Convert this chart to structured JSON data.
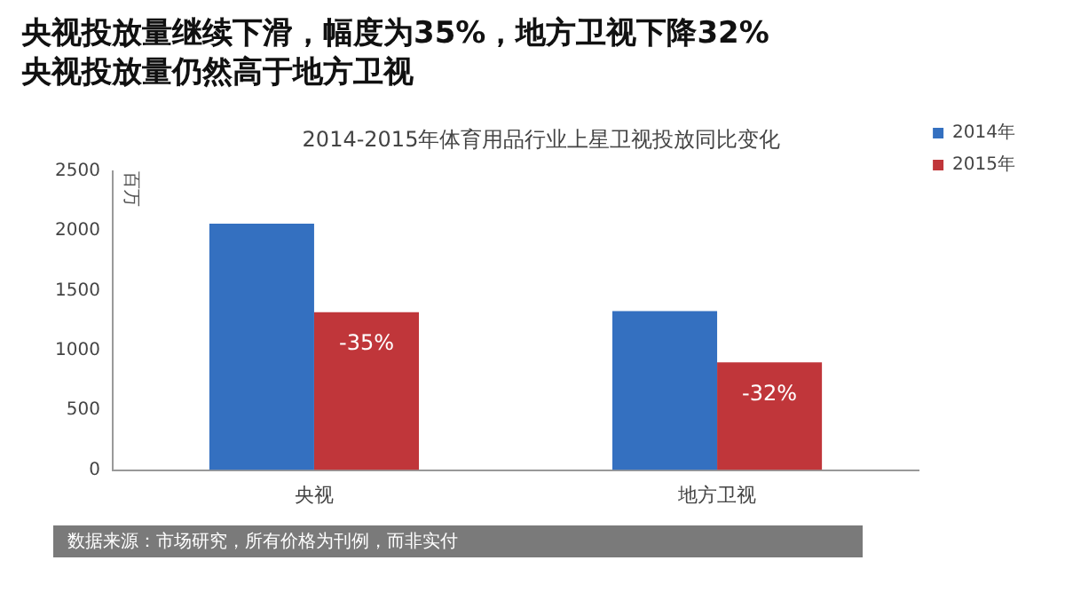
{
  "chart_data": {
    "type": "bar",
    "title": "央视投放量继续下滑，幅度为35%，地方卫视下降32%\n央视投放量仍然高于地方卫视",
    "subtitle": "2014-2015年体育用品行业上星卫视投放同比变化",
    "ylabel": "百万",
    "categories": [
      "央视",
      "地方卫视"
    ],
    "series": [
      {
        "name": "2014年",
        "color": "#3470c0",
        "values": [
          2060,
          1330
        ]
      },
      {
        "name": "2015年",
        "color": "#c0363a",
        "values": [
          1320,
          900
        ]
      }
    ],
    "ylim": [
      0,
      2500
    ],
    "yticks": [
      0,
      500,
      1000,
      1500,
      2000,
      2500
    ],
    "grid": false,
    "legend": "right",
    "annotations": [
      "-35%",
      "-32%",
      "数据来源：市场研究，所有价格为刊例，而非实付"
    ]
  }
}
